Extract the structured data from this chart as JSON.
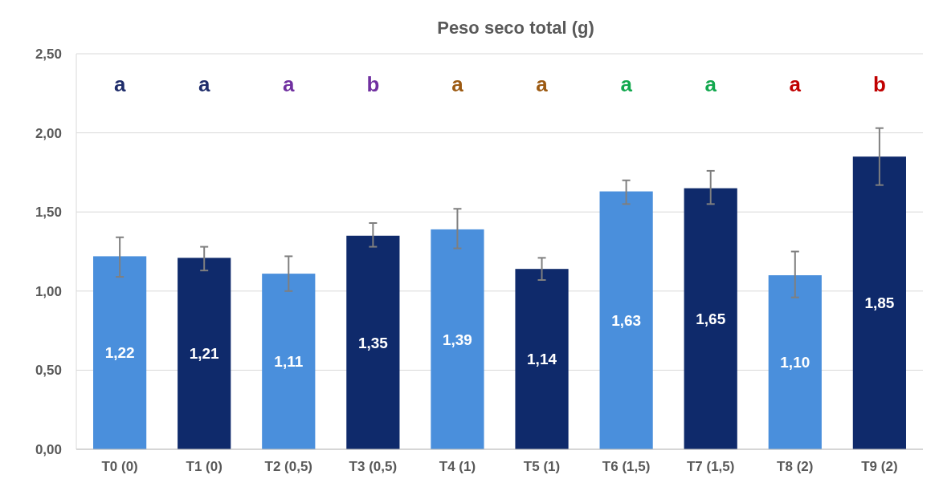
{
  "chart_data": {
    "type": "bar",
    "title": "Peso seco total (g)",
    "categories": [
      "T0 (0)",
      "T1 (0)",
      "T2 (0,5)",
      "T3  (0,5)",
      "T4 (1)",
      "T5 (1)",
      "T6 (1,5)",
      "T7 (1,5)",
      "T8 (2)",
      "T9 (2)"
    ],
    "values": [
      1.22,
      1.21,
      1.11,
      1.35,
      1.39,
      1.14,
      1.63,
      1.65,
      1.1,
      1.85
    ],
    "value_labels": [
      "1,22",
      "1,21",
      "1,11",
      "1,35",
      "1,39",
      "1,14",
      "1,63",
      "1,65",
      "1,10",
      "1,85"
    ],
    "colors": [
      "#4a8fdc",
      "#0f2a6b",
      "#4a8fdc",
      "#0f2a6b",
      "#4a8fdc",
      "#0f2a6b",
      "#4a8fdc",
      "#0f2a6b",
      "#4a8fdc",
      "#0f2a6b"
    ],
    "errors": [
      [
        1.09,
        1.34
      ],
      [
        1.13,
        1.28
      ],
      [
        1.0,
        1.22
      ],
      [
        1.28,
        1.43
      ],
      [
        1.27,
        1.52
      ],
      [
        1.07,
        1.21
      ],
      [
        1.55,
        1.7
      ],
      [
        1.55,
        1.76
      ],
      [
        0.96,
        1.25
      ],
      [
        1.67,
        2.03
      ]
    ],
    "annotations": [
      "a",
      "a",
      "a",
      "b",
      "a",
      "a",
      "a",
      "a",
      "a",
      "b"
    ],
    "ylim": [
      0,
      2.5
    ],
    "yticks": [
      {
        "value": 0,
        "label": "0,00"
      },
      {
        "value": 0.5,
        "label": "0,50"
      },
      {
        "value": 1,
        "label": "1,00"
      },
      {
        "value": 1.5,
        "label": "1,50"
      },
      {
        "value": 2,
        "label": "2,00"
      },
      {
        "value": 2.5,
        "label": "2,50"
      }
    ],
    "grid": "y"
  }
}
